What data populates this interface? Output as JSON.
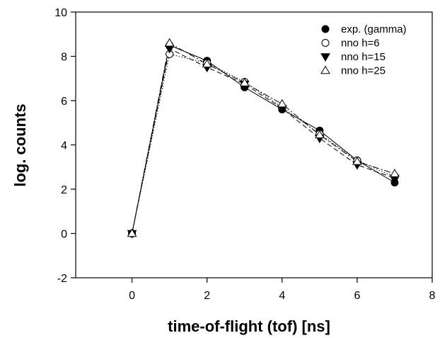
{
  "chart_data": {
    "type": "line",
    "xlabel": "time-of-flight (tof) [ns]",
    "ylabel": "log. counts",
    "xlim": [
      -1.5,
      8
    ],
    "ylim": [
      -2,
      10
    ],
    "x_ticks": [
      0,
      2,
      4,
      6,
      8
    ],
    "y_ticks": [
      -2,
      0,
      2,
      4,
      6,
      8,
      10
    ],
    "grid": false,
    "legend_position": "top-right",
    "series": [
      {
        "name": "exp. (gamma)",
        "marker": "filled-circle",
        "line_style": "solid",
        "x": [
          0,
          1,
          2,
          3,
          4,
          5,
          6,
          7
        ],
        "y": [
          0,
          8.5,
          7.8,
          6.6,
          5.6,
          4.65,
          3.3,
          2.3
        ]
      },
      {
        "name": "nno h=6",
        "marker": "open-circle",
        "line_style": "dotted",
        "x": [
          0,
          1,
          2,
          3,
          4,
          5,
          6,
          7
        ],
        "y": [
          0,
          8.1,
          7.7,
          6.85,
          5.7,
          4.5,
          3.3,
          2.55
        ]
      },
      {
        "name": "nno h=15",
        "marker": "filled-triangle-down",
        "line_style": "dashed",
        "x": [
          0,
          1,
          2,
          3,
          4,
          5,
          6,
          7
        ],
        "y": [
          0,
          8.35,
          7.5,
          6.75,
          5.65,
          4.3,
          3.1,
          2.5
        ]
      },
      {
        "name": "nno h=25",
        "marker": "open-triangle-up",
        "line_style": "dash-dot",
        "x": [
          0,
          1,
          2,
          3,
          4,
          5,
          6,
          7
        ],
        "y": [
          0,
          8.6,
          7.65,
          6.8,
          5.85,
          4.45,
          3.25,
          2.7
        ]
      }
    ]
  }
}
